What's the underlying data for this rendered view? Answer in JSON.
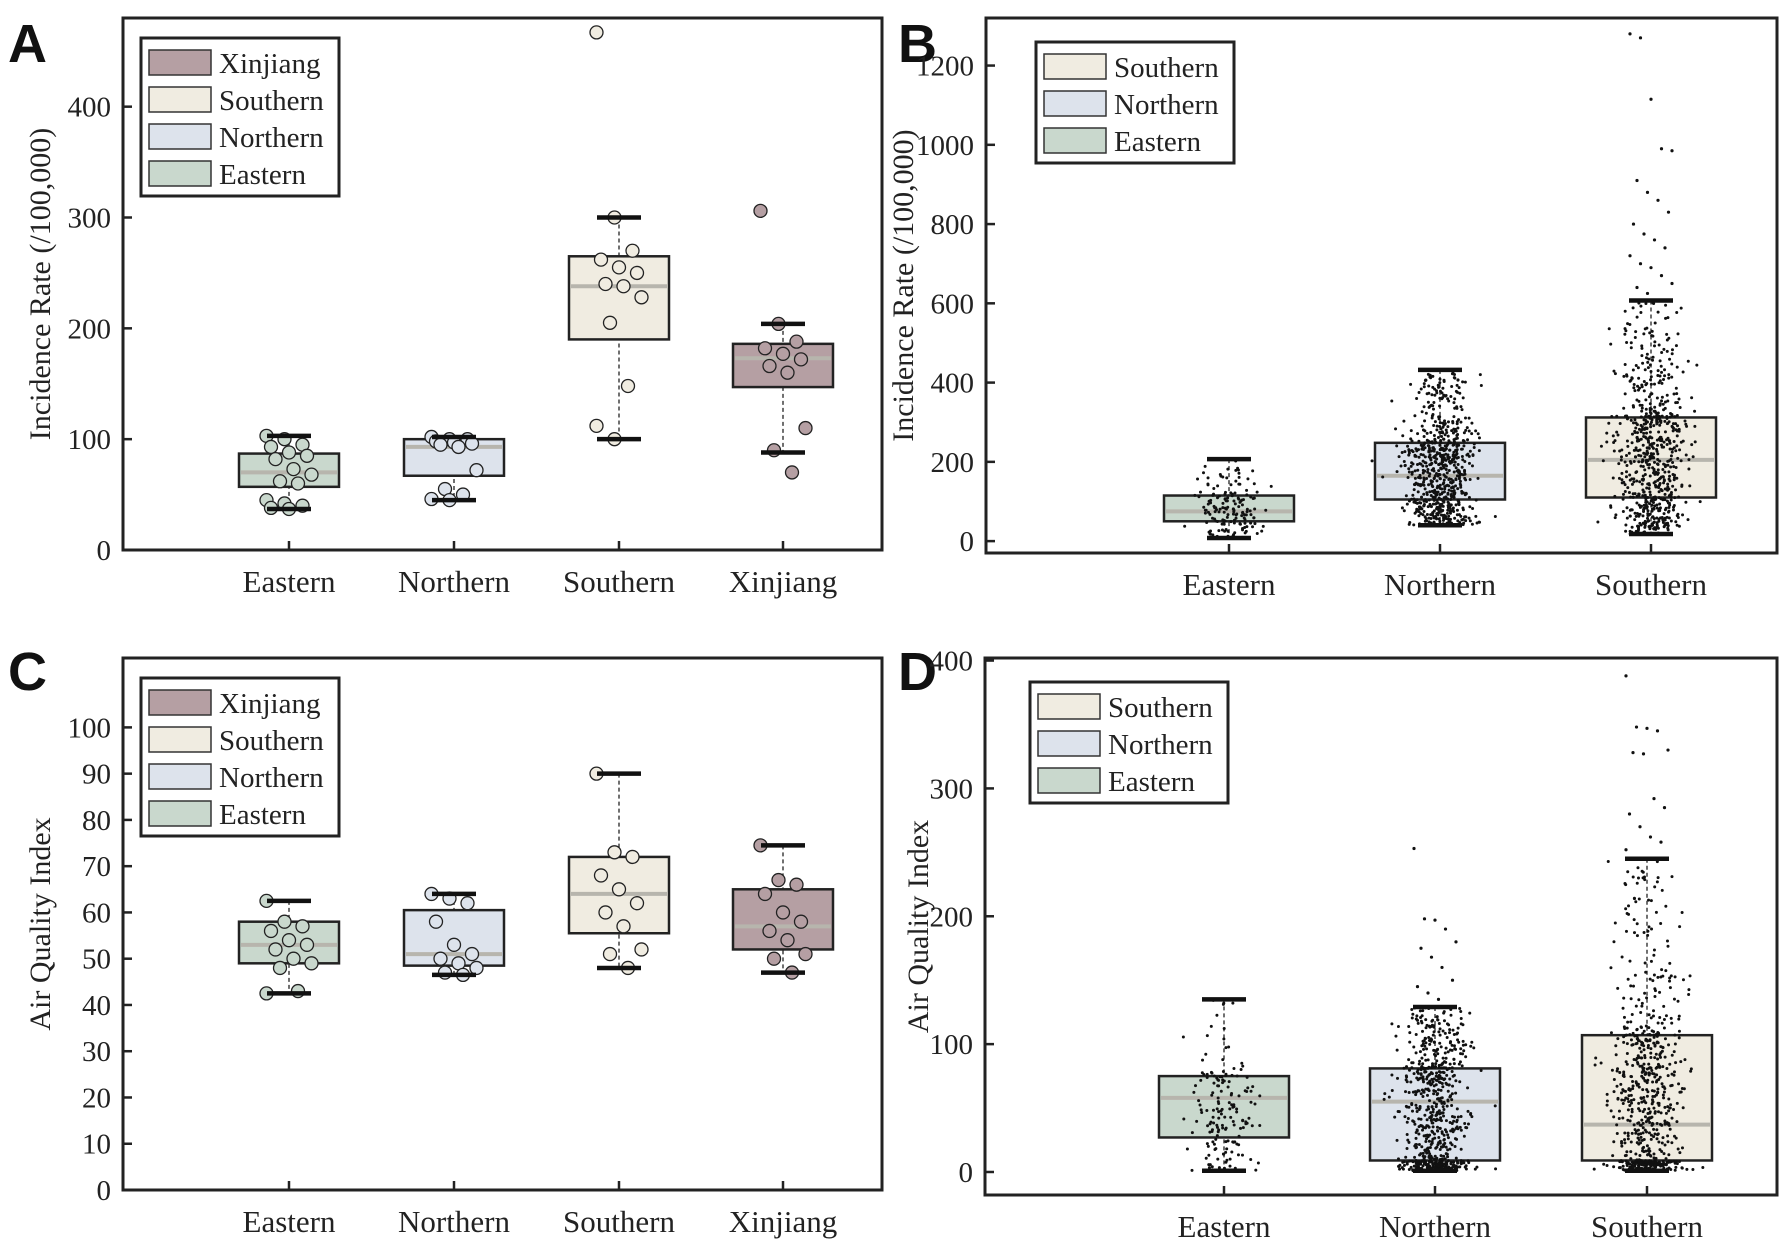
{
  "chart_data": [
    {
      "panel": "A",
      "type": "box",
      "ylabel": "Incidence Rate (/100,000)",
      "ylim": [
        0,
        480
      ],
      "yticks": [
        0,
        100,
        200,
        300,
        400
      ],
      "categories": [
        "Eastern",
        "Northern",
        "Southern",
        "Xinjiang"
      ],
      "legend": [
        "Xinjiang",
        "Southern",
        "Northern",
        "Eastern"
      ],
      "legend_position": "top-left",
      "boxes": [
        {
          "name": "Eastern",
          "min": 37,
          "q1": 57,
          "median": 70,
          "q3": 87,
          "max": 103,
          "points": [
            103,
            100,
            95,
            93,
            88,
            85,
            82,
            73,
            68,
            62,
            60,
            45,
            42,
            40,
            38,
            37
          ]
        },
        {
          "name": "Northern",
          "min": 45,
          "q1": 67,
          "median": 93,
          "q3": 100,
          "max": 102,
          "points": [
            102,
            100,
            100,
            98,
            97,
            96,
            95,
            93,
            72,
            55,
            50,
            46,
            45
          ]
        },
        {
          "name": "Southern",
          "min": 100,
          "q1": 190,
          "median": 238,
          "q3": 265,
          "max": 300,
          "points": [
            467,
            300,
            270,
            262,
            255,
            250,
            240,
            238,
            228,
            205,
            148,
            112,
            100
          ]
        },
        {
          "name": "Xinjiang",
          "min": 88,
          "q1": 147,
          "median": 173,
          "q3": 186,
          "max": 204,
          "points": [
            306,
            204,
            188,
            182,
            177,
            172,
            166,
            160,
            110,
            90,
            70
          ]
        }
      ]
    },
    {
      "panel": "B",
      "type": "box",
      "ylabel": "Incidence Rate (/100,000)",
      "ylim": [
        -30,
        1320
      ],
      "yticks": [
        0,
        200,
        400,
        600,
        800,
        1000,
        1200
      ],
      "categories": [
        "Eastern",
        "Northern",
        "Southern"
      ],
      "legend": [
        "Southern",
        "Northern",
        "Eastern"
      ],
      "legend_position": "top-left",
      "boxes": [
        {
          "name": "Eastern",
          "min": 8,
          "q1": 50,
          "median": 75,
          "q3": 115,
          "max": 207
        },
        {
          "name": "Northern",
          "min": 40,
          "q1": 105,
          "median": 165,
          "q3": 248,
          "max": 432
        },
        {
          "name": "Southern",
          "min": 18,
          "q1": 110,
          "median": 205,
          "q3": 312,
          "max": 607,
          "outliers": [
            1280,
            1270,
            1115,
            990,
            985,
            910,
            880,
            860,
            830,
            800,
            775,
            760,
            740,
            720,
            700,
            690,
            670,
            650,
            640,
            625
          ]
        }
      ]
    },
    {
      "panel": "C",
      "type": "box",
      "ylabel": "Air Quality Index",
      "ylim": [
        0,
        115
      ],
      "yticks": [
        0,
        10,
        20,
        30,
        40,
        50,
        60,
        70,
        80,
        90,
        100
      ],
      "categories": [
        "Eastern",
        "Northern",
        "Southern",
        "Xinjiang"
      ],
      "legend": [
        "Xinjiang",
        "Southern",
        "Northern",
        "Eastern"
      ],
      "legend_position": "top-left",
      "boxes": [
        {
          "name": "Eastern",
          "min": 42.5,
          "q1": 49,
          "median": 53,
          "q3": 58,
          "max": 62.5,
          "points": [
            62.5,
            58,
            57,
            56,
            54,
            53,
            52,
            50,
            49,
            48,
            43,
            42.5
          ]
        },
        {
          "name": "Northern",
          "min": 46.5,
          "q1": 48.5,
          "median": 51,
          "q3": 60.5,
          "max": 64,
          "points": [
            64,
            63,
            62,
            58,
            53,
            51,
            50,
            49,
            48,
            47,
            46.5
          ]
        },
        {
          "name": "Southern",
          "min": 48,
          "q1": 55.5,
          "median": 64,
          "q3": 72,
          "max": 90,
          "points": [
            90,
            73,
            72,
            68,
            65,
            62,
            60,
            57,
            52,
            51,
            48
          ]
        },
        {
          "name": "Xinjiang",
          "min": 47,
          "q1": 52,
          "median": 57,
          "q3": 65,
          "max": 74.5,
          "points": [
            74.5,
            67,
            66,
            64,
            60,
            58,
            56,
            54,
            51,
            50,
            47
          ]
        }
      ]
    },
    {
      "panel": "D",
      "type": "box",
      "ylabel": "Air Quality Index",
      "ylim": [
        -18,
        402
      ],
      "yticks": [
        0,
        100,
        200,
        300,
        400
      ],
      "categories": [
        "Eastern",
        "Northern",
        "Southern"
      ],
      "legend": [
        "Southern",
        "Northern",
        "Eastern"
      ],
      "legend_position": "top-left",
      "boxes": [
        {
          "name": "Eastern",
          "min": 1,
          "q1": 27,
          "median": 58,
          "q3": 75,
          "max": 135
        },
        {
          "name": "Northern",
          "min": 1,
          "q1": 9,
          "median": 55,
          "q3": 81,
          "max": 129,
          "outliers": [
            253,
            198,
            197,
            190,
            180,
            175,
            168,
            160,
            150,
            145,
            140,
            135
          ]
        },
        {
          "name": "Southern",
          "min": 1,
          "q1": 9,
          "median": 37,
          "q3": 107,
          "max": 245,
          "outliers": [
            388,
            348,
            347,
            345,
            330,
            328,
            327,
            292,
            285,
            280,
            270,
            262,
            258,
            252
          ]
        }
      ]
    }
  ],
  "colors": {
    "Eastern": "#c9d8cd",
    "Northern": "#dde3ec",
    "Southern": "#f0ece1",
    "Xinjiang": "#b59fa3",
    "median": "#b7b5ad",
    "axis": "#222222"
  }
}
